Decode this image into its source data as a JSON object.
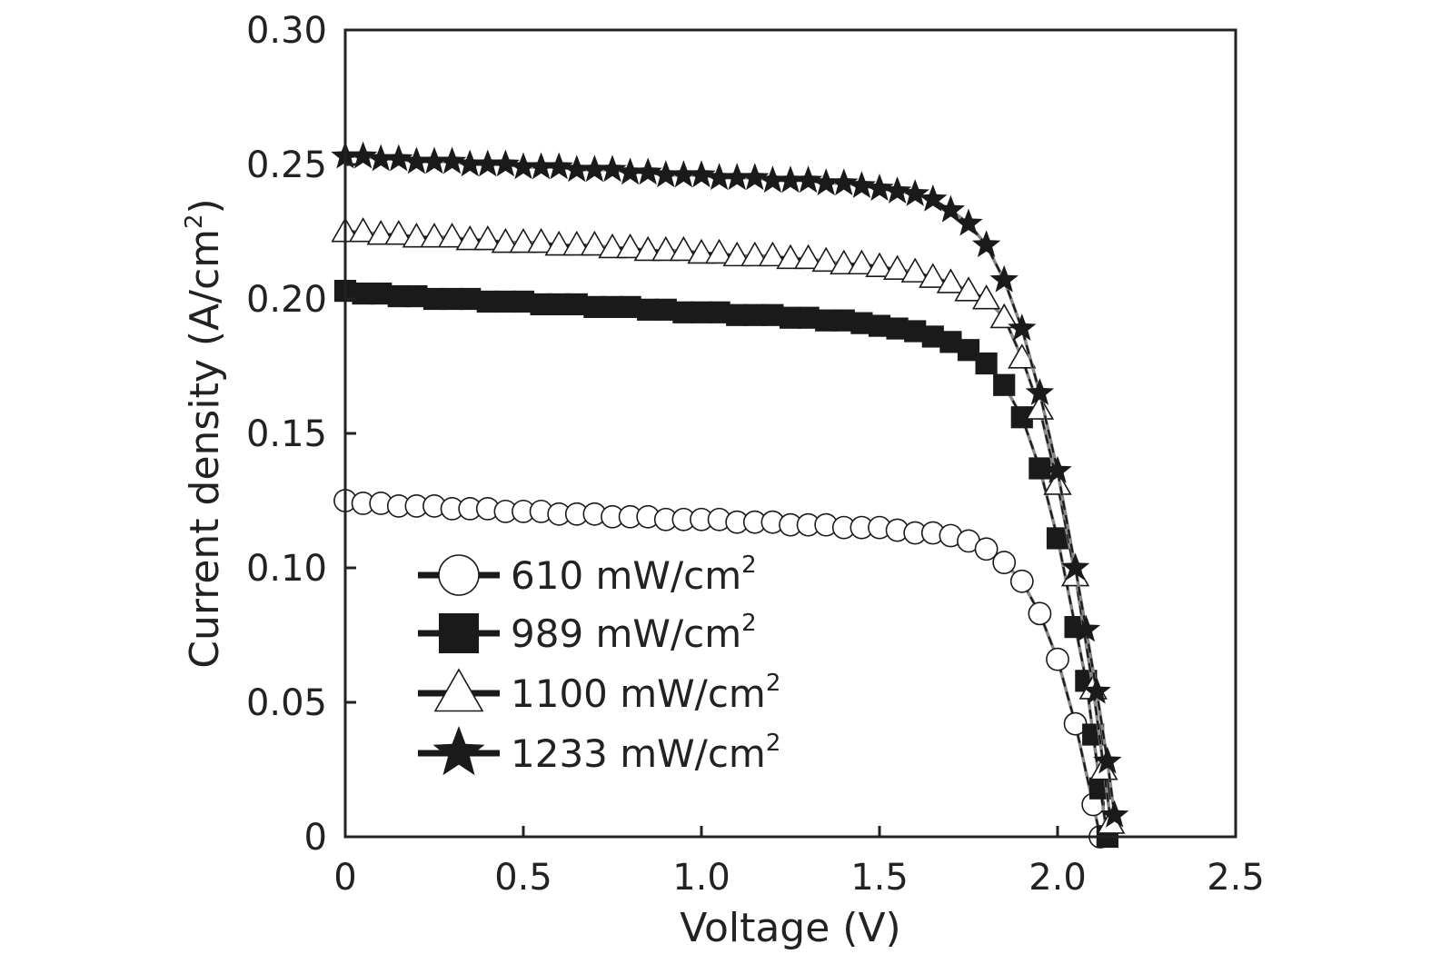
{
  "chart_data": {
    "type": "line",
    "title": "",
    "xlabel": "Voltage (V)",
    "ylabel": "Current density (A/cm",
    "ylabel_sup": "2",
    "ylabel_close": ")",
    "xlim": [
      0,
      2.5
    ],
    "ylim": [
      0,
      0.3
    ],
    "x_ticks": [
      "0",
      "0.5",
      "1.0",
      "1.5",
      "2.0",
      "2.5"
    ],
    "y_ticks": [
      "0",
      "0.05",
      "0.10",
      "0.15",
      "0.20",
      "0.25",
      "0.30"
    ],
    "legend_position": "lower-left",
    "grid": false,
    "series": [
      {
        "name": "610 mW/cm",
        "name_sup": "2",
        "marker": "circle-open",
        "color": "#1a1a1a",
        "x": [
          0.0,
          0.05,
          0.1,
          0.15,
          0.2,
          0.25,
          0.3,
          0.35,
          0.4,
          0.45,
          0.5,
          0.55,
          0.6,
          0.65,
          0.7,
          0.75,
          0.8,
          0.85,
          0.9,
          0.95,
          1.0,
          1.05,
          1.1,
          1.15,
          1.2,
          1.25,
          1.3,
          1.35,
          1.4,
          1.45,
          1.5,
          1.55,
          1.6,
          1.65,
          1.7,
          1.75,
          1.8,
          1.85,
          1.9,
          1.95,
          2.0,
          2.05,
          2.1,
          2.12
        ],
        "y": [
          0.125,
          0.124,
          0.124,
          0.123,
          0.123,
          0.123,
          0.122,
          0.122,
          0.122,
          0.121,
          0.121,
          0.121,
          0.12,
          0.12,
          0.12,
          0.119,
          0.119,
          0.119,
          0.118,
          0.118,
          0.118,
          0.118,
          0.117,
          0.117,
          0.117,
          0.116,
          0.116,
          0.116,
          0.115,
          0.115,
          0.115,
          0.114,
          0.113,
          0.113,
          0.112,
          0.11,
          0.107,
          0.102,
          0.095,
          0.083,
          0.066,
          0.042,
          0.012,
          0.0
        ]
      },
      {
        "name": "989 mW/cm",
        "name_sup": "2",
        "marker": "square-filled",
        "color": "#1a1a1a",
        "x": [
          0.0,
          0.05,
          0.1,
          0.15,
          0.2,
          0.25,
          0.3,
          0.35,
          0.4,
          0.45,
          0.5,
          0.55,
          0.6,
          0.65,
          0.7,
          0.75,
          0.8,
          0.85,
          0.9,
          0.95,
          1.0,
          1.05,
          1.1,
          1.15,
          1.2,
          1.25,
          1.3,
          1.35,
          1.4,
          1.45,
          1.5,
          1.55,
          1.6,
          1.65,
          1.7,
          1.75,
          1.8,
          1.85,
          1.9,
          1.95,
          2.0,
          2.05,
          2.08,
          2.1,
          2.12,
          2.14
        ],
        "y": [
          0.203,
          0.202,
          0.202,
          0.201,
          0.201,
          0.2,
          0.2,
          0.2,
          0.199,
          0.199,
          0.199,
          0.198,
          0.198,
          0.198,
          0.197,
          0.197,
          0.197,
          0.196,
          0.196,
          0.195,
          0.195,
          0.195,
          0.194,
          0.194,
          0.194,
          0.193,
          0.193,
          0.192,
          0.192,
          0.191,
          0.19,
          0.189,
          0.188,
          0.186,
          0.184,
          0.181,
          0.176,
          0.168,
          0.156,
          0.137,
          0.111,
          0.078,
          0.058,
          0.038,
          0.018,
          0.0
        ]
      },
      {
        "name": "1100 mW/cm",
        "name_sup": "2",
        "marker": "triangle-open",
        "color": "#1a1a1a",
        "x": [
          0.0,
          0.05,
          0.1,
          0.15,
          0.2,
          0.25,
          0.3,
          0.35,
          0.4,
          0.45,
          0.5,
          0.55,
          0.6,
          0.65,
          0.7,
          0.75,
          0.8,
          0.85,
          0.9,
          0.95,
          1.0,
          1.05,
          1.1,
          1.15,
          1.2,
          1.25,
          1.3,
          1.35,
          1.4,
          1.45,
          1.5,
          1.55,
          1.6,
          1.65,
          1.7,
          1.75,
          1.8,
          1.85,
          1.9,
          1.95,
          2.0,
          2.05,
          2.1,
          2.13,
          2.15
        ],
        "y": [
          0.225,
          0.225,
          0.224,
          0.224,
          0.223,
          0.223,
          0.223,
          0.222,
          0.222,
          0.221,
          0.221,
          0.221,
          0.22,
          0.22,
          0.22,
          0.219,
          0.219,
          0.218,
          0.218,
          0.218,
          0.217,
          0.217,
          0.216,
          0.216,
          0.216,
          0.215,
          0.215,
          0.214,
          0.213,
          0.213,
          0.212,
          0.211,
          0.21,
          0.208,
          0.206,
          0.203,
          0.2,
          0.193,
          0.178,
          0.159,
          0.131,
          0.097,
          0.055,
          0.025,
          0.005
        ]
      },
      {
        "name": "1233 mW/cm",
        "name_sup": "2",
        "marker": "star-filled",
        "color": "#1a1a1a",
        "x": [
          0.0,
          0.05,
          0.1,
          0.15,
          0.2,
          0.25,
          0.3,
          0.35,
          0.4,
          0.45,
          0.5,
          0.55,
          0.6,
          0.65,
          0.7,
          0.75,
          0.8,
          0.85,
          0.9,
          0.95,
          1.0,
          1.05,
          1.1,
          1.15,
          1.2,
          1.25,
          1.3,
          1.35,
          1.4,
          1.45,
          1.5,
          1.55,
          1.6,
          1.65,
          1.7,
          1.75,
          1.8,
          1.85,
          1.9,
          1.95,
          2.0,
          2.05,
          2.08,
          2.11,
          2.14,
          2.16
        ],
        "y": [
          0.253,
          0.253,
          0.252,
          0.252,
          0.251,
          0.251,
          0.251,
          0.25,
          0.25,
          0.25,
          0.249,
          0.249,
          0.249,
          0.248,
          0.248,
          0.248,
          0.247,
          0.247,
          0.246,
          0.246,
          0.246,
          0.245,
          0.245,
          0.245,
          0.244,
          0.244,
          0.244,
          0.243,
          0.243,
          0.242,
          0.241,
          0.24,
          0.239,
          0.237,
          0.233,
          0.228,
          0.22,
          0.207,
          0.189,
          0.165,
          0.136,
          0.1,
          0.077,
          0.054,
          0.028,
          0.008
        ]
      }
    ]
  }
}
